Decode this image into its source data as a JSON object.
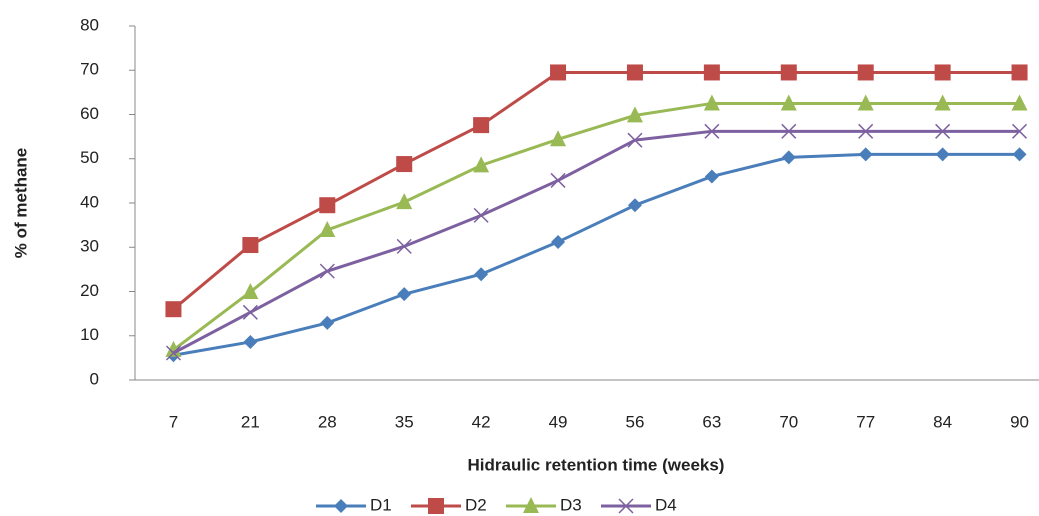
{
  "chart_data": {
    "type": "line",
    "x_label": "Hidraulic retention time (weeks)",
    "y_label": "% of methane",
    "categories": [
      "7",
      "21",
      "28",
      "35",
      "42",
      "49",
      "56",
      "63",
      "70",
      "77",
      "84",
      "90"
    ],
    "series": [
      {
        "name": "D1",
        "color": "#4a7ebb",
        "marker": "diamond",
        "values": [
          5.6,
          8.6,
          12.9,
          19.4,
          23.9,
          31.2,
          39.5,
          46,
          50.3,
          51,
          51,
          51
        ]
      },
      {
        "name": "D2",
        "color": "#be4b48",
        "marker": "square",
        "values": [
          16,
          30.5,
          39.5,
          48.8,
          57.6,
          69.5,
          69.5,
          69.5,
          69.5,
          69.5,
          69.5,
          69.5
        ]
      },
      {
        "name": "D3",
        "color": "#98b954",
        "marker": "triangle",
        "values": [
          6.8,
          19.9,
          33.9,
          40.2,
          48.5,
          54.4,
          59.8,
          62.5,
          62.5,
          62.5,
          62.5,
          62.5
        ]
      },
      {
        "name": "D4",
        "color": "#7d60a0",
        "marker": "x",
        "values": [
          6.1,
          15.3,
          24.6,
          30.2,
          37.2,
          45.1,
          54.2,
          56.2,
          56.2,
          56.2,
          56.2,
          56.2
        ]
      }
    ],
    "ylim": [
      0,
      80
    ],
    "yticks": [
      0,
      10,
      20,
      30,
      40,
      50,
      60,
      70,
      80
    ],
    "grid": false,
    "legend": "bottom"
  }
}
